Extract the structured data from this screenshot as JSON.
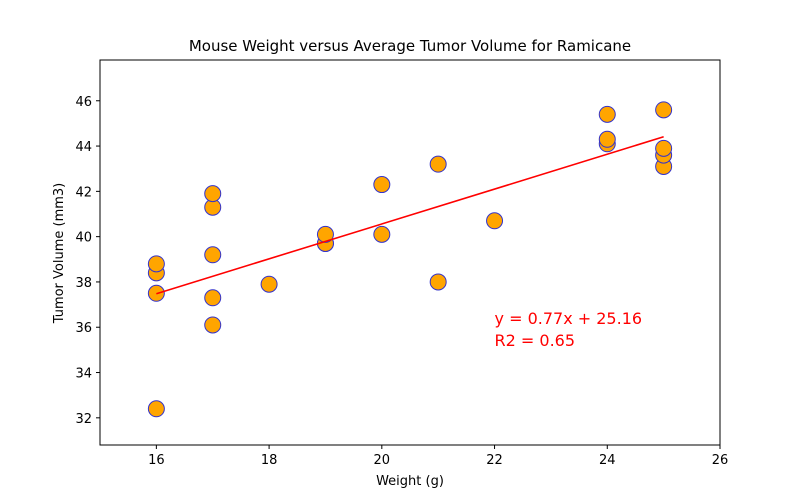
{
  "chart_data": {
    "type": "scatter",
    "title": "Mouse Weight versus Average Tumor Volume for Ramicane",
    "xlabel": "Weight (g)",
    "ylabel": "Tumor Volume (mm3)",
    "xlim": [
      15,
      26
    ],
    "ylim": [
      30.8,
      47.8
    ],
    "xticks": [
      16,
      18,
      20,
      22,
      24,
      26
    ],
    "yticks": [
      32,
      34,
      36,
      38,
      40,
      42,
      44,
      46
    ],
    "grid": false,
    "marker_fill": "#ffa500",
    "marker_edge": "#3333cc",
    "line_color": "#ff0000",
    "points": [
      {
        "x": 16,
        "y": 32.4
      },
      {
        "x": 16,
        "y": 37.5
      },
      {
        "x": 16,
        "y": 38.4
      },
      {
        "x": 16,
        "y": 38.8
      },
      {
        "x": 17,
        "y": 36.1
      },
      {
        "x": 17,
        "y": 37.3
      },
      {
        "x": 17,
        "y": 39.2
      },
      {
        "x": 17,
        "y": 41.3
      },
      {
        "x": 17,
        "y": 41.9
      },
      {
        "x": 18,
        "y": 37.9
      },
      {
        "x": 19,
        "y": 39.7
      },
      {
        "x": 19,
        "y": 39.7
      },
      {
        "x": 19,
        "y": 40.1
      },
      {
        "x": 20,
        "y": 40.1
      },
      {
        "x": 20,
        "y": 42.3
      },
      {
        "x": 21,
        "y": 38.0
      },
      {
        "x": 21,
        "y": 43.2
      },
      {
        "x": 22,
        "y": 40.7
      },
      {
        "x": 24,
        "y": 44.1
      },
      {
        "x": 24,
        "y": 44.3
      },
      {
        "x": 24,
        "y": 45.4
      },
      {
        "x": 25,
        "y": 43.1
      },
      {
        "x": 25,
        "y": 43.6
      },
      {
        "x": 25,
        "y": 43.9
      },
      {
        "x": 25,
        "y": 45.6
      }
    ],
    "regression": {
      "slope": 0.77,
      "intercept": 25.16,
      "x_start": 16,
      "x_end": 25
    },
    "annotation": {
      "line1": "y = 0.77x + 25.16",
      "line2": "R2 = 0.65",
      "x": 22,
      "y": 36.1,
      "color": "#ff0000"
    }
  }
}
